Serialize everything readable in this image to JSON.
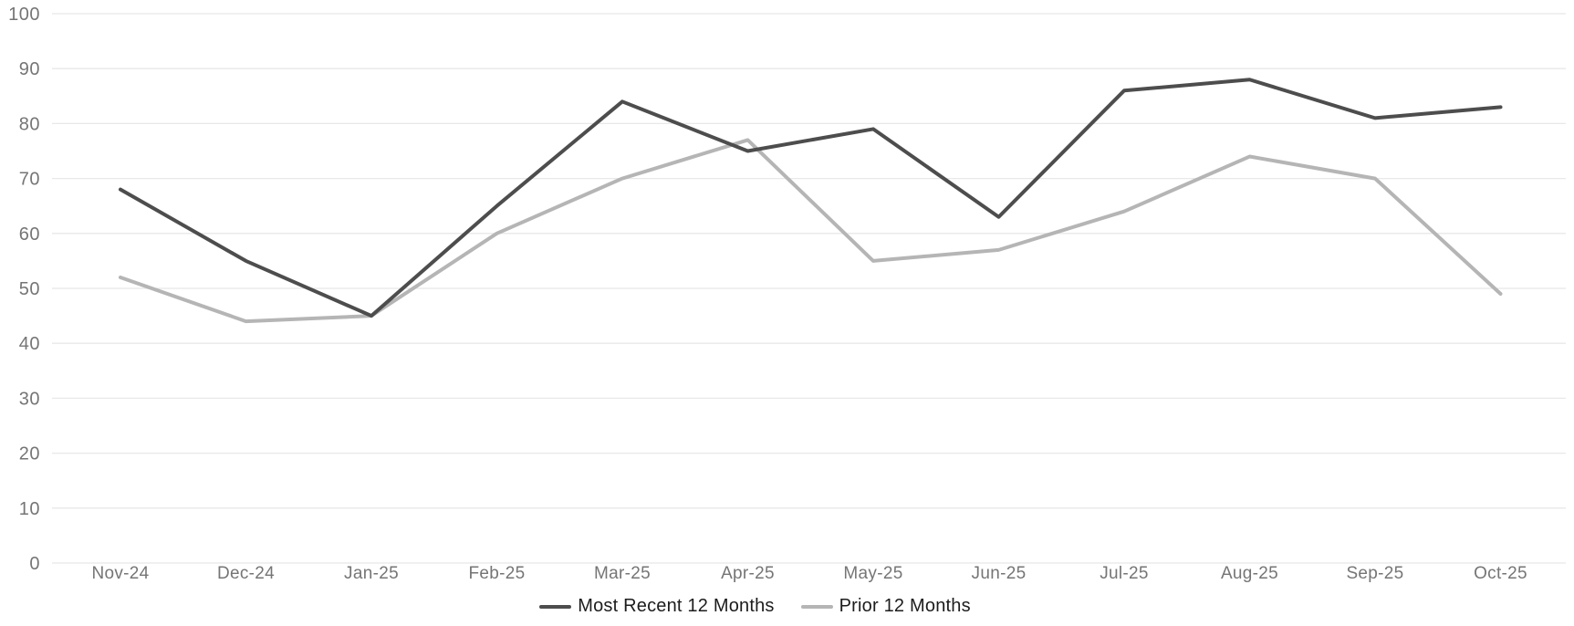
{
  "chart_data": {
    "type": "line",
    "title": "",
    "categories": [
      "Nov-24",
      "Dec-24",
      "Jan-25",
      "Feb-25",
      "Mar-25",
      "Apr-25",
      "May-25",
      "Jun-25",
      "Jul-25",
      "Aug-25",
      "Sep-25",
      "Oct-25"
    ],
    "series": [
      {
        "name": "Most Recent 12 Months",
        "color": "#4d4d4d",
        "values": [
          68,
          55,
          45,
          65,
          84,
          75,
          79,
          63,
          86,
          88,
          81,
          83
        ]
      },
      {
        "name": "Prior 12 Months",
        "color": "#b5b5b5",
        "values": [
          52,
          44,
          45,
          60,
          70,
          77,
          55,
          57,
          64,
          74,
          70,
          49
        ]
      }
    ],
    "xlabel": "",
    "ylabel": "",
    "ylim": [
      0,
      100
    ],
    "ytick_step": 10,
    "yticks": [
      0,
      10,
      20,
      30,
      40,
      50,
      60,
      70,
      80,
      90,
      100
    ],
    "grid": true,
    "legend_position": "bottom-center"
  },
  "colors": {
    "background": "#ffffff",
    "gridline": "#e8e8e8",
    "axis_label_text": "#757575",
    "legend_text": "#1c1c1c"
  }
}
